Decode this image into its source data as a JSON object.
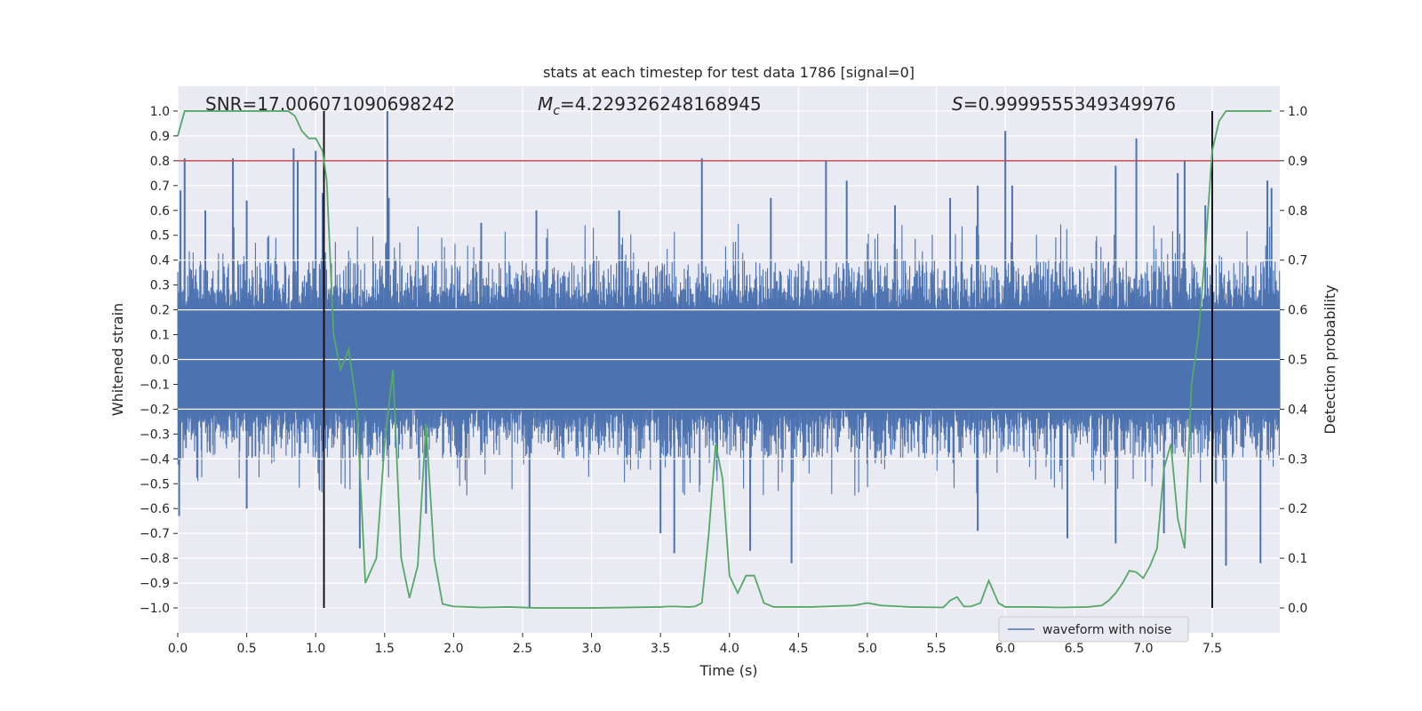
{
  "chart_data": {
    "type": "line",
    "title": "stats at each timestep for test data 1786 [signal=0]",
    "xlabel": "Time (s)",
    "ylabel_left": "Whitened strain",
    "ylabel_right": "Detection probability",
    "xlim": [
      0.0,
      7.99
    ],
    "ylim_left": [
      -1.1,
      1.1
    ],
    "ylim_right": [
      -0.05,
      1.05
    ],
    "x_ticks": [
      0.0,
      0.5,
      1.0,
      1.5,
      2.0,
      2.5,
      3.0,
      3.5,
      4.0,
      4.5,
      5.0,
      5.5,
      6.0,
      6.5,
      7.0,
      7.5
    ],
    "x_tick_labels": [
      "0.0",
      "0.5",
      "1.0",
      "1.5",
      "2.0",
      "2.5",
      "3.0",
      "3.5",
      "4.0",
      "4.5",
      "5.0",
      "5.5",
      "6.0",
      "6.5",
      "7.0",
      "7.5"
    ],
    "y_left_ticks": [
      1.0,
      0.9,
      0.8,
      0.7,
      0.6,
      0.5,
      0.4,
      0.3,
      0.2,
      0.1,
      0.0,
      -0.1,
      -0.2,
      -0.3,
      -0.4,
      -0.5,
      -0.6,
      -0.7,
      -0.8,
      -0.9,
      -1.0
    ],
    "y_left_tick_labels": [
      "1.0",
      "0.9",
      "0.8",
      "0.7",
      "0.6",
      "0.5",
      "0.4",
      "0.3",
      "0.2",
      "0.1",
      "0.0",
      "−0.1",
      "−0.2",
      "−0.3",
      "−0.4",
      "−0.5",
      "−0.6",
      "−0.7",
      "−0.8",
      "−0.9",
      "−1.0"
    ],
    "y_right_ticks": [
      1.0,
      0.9,
      0.8,
      0.7,
      0.6,
      0.5,
      0.4,
      0.3,
      0.2,
      0.1,
      0.0
    ],
    "y_right_tick_labels": [
      "1.0",
      "0.9",
      "0.8",
      "0.7",
      "0.6",
      "0.5",
      "0.4",
      "0.3",
      "0.2",
      "0.1",
      "0.0"
    ],
    "grid": true,
    "annotations": {
      "snr": "SNR=17.006071090698242",
      "mc_symbol": "M",
      "mc_sub": "c",
      "mc_value": "=4.229326248168945",
      "s_symbol": "S",
      "s_value": "=0.9999555349349976"
    },
    "threshold": {
      "y_left": 0.8,
      "color": "#c44e52"
    },
    "vertical_markers": [
      1.06,
      7.5
    ],
    "legend": {
      "label": "waveform with noise",
      "placement": "lower-right"
    },
    "waveform": {
      "name": "waveform with noise",
      "color": "#4c72b0",
      "duration": 7.99,
      "core_amplitude": 0.2,
      "typical_peak": 0.4,
      "spikes": [
        {
          "t": 0.02,
          "v": 0.68
        },
        {
          "t": 0.05,
          "v": 0.81
        },
        {
          "t": 0.01,
          "v": -0.63
        },
        {
          "t": 0.2,
          "v": 0.6
        },
        {
          "t": 0.4,
          "v": 0.81
        },
        {
          "t": 0.5,
          "v": 0.64
        },
        {
          "t": 0.5,
          "v": -0.6
        },
        {
          "t": 0.84,
          "v": 0.85
        },
        {
          "t": 0.87,
          "v": 0.8
        },
        {
          "t": 1.0,
          "v": 0.84
        },
        {
          "t": 1.05,
          "v": 0.67
        },
        {
          "t": 1.32,
          "v": -0.76
        },
        {
          "t": 1.52,
          "v": 1.0
        },
        {
          "t": 1.53,
          "v": 0.65
        },
        {
          "t": 1.8,
          "v": -0.62
        },
        {
          "t": 2.2,
          "v": 0.55
        },
        {
          "t": 2.55,
          "v": -1.0
        },
        {
          "t": 2.6,
          "v": 0.6
        },
        {
          "t": 3.2,
          "v": 0.6
        },
        {
          "t": 3.5,
          "v": -0.7
        },
        {
          "t": 3.6,
          "v": -0.78
        },
        {
          "t": 3.8,
          "v": 0.81
        },
        {
          "t": 4.15,
          "v": -0.77
        },
        {
          "t": 4.3,
          "v": 0.65
        },
        {
          "t": 4.45,
          "v": -0.82
        },
        {
          "t": 4.7,
          "v": 0.8
        },
        {
          "t": 4.85,
          "v": 0.72
        },
        {
          "t": 5.2,
          "v": 0.62
        },
        {
          "t": 5.6,
          "v": 0.65
        },
        {
          "t": 5.8,
          "v": 0.7
        },
        {
          "t": 5.8,
          "v": -0.69
        },
        {
          "t": 6.0,
          "v": 0.92
        },
        {
          "t": 6.05,
          "v": 0.7
        },
        {
          "t": 6.45,
          "v": -0.72
        },
        {
          "t": 6.8,
          "v": 0.78
        },
        {
          "t": 6.95,
          "v": 0.89
        },
        {
          "t": 6.8,
          "v": -0.74
        },
        {
          "t": 7.15,
          "v": -0.7
        },
        {
          "t": 7.25,
          "v": 0.75
        },
        {
          "t": 7.3,
          "v": 0.8
        },
        {
          "t": 7.45,
          "v": 0.62
        },
        {
          "t": 7.6,
          "v": -0.83
        },
        {
          "t": 7.85,
          "v": -0.82
        },
        {
          "t": 7.9,
          "v": 0.72
        },
        {
          "t": 7.93,
          "v": 0.69
        }
      ]
    },
    "detection_probability": {
      "name": "detection probability",
      "color": "#55a868",
      "x": [
        0.0,
        0.05,
        0.1,
        0.2,
        0.3,
        0.4,
        0.5,
        0.6,
        0.7,
        0.8,
        0.85,
        0.9,
        0.95,
        1.0,
        1.05,
        1.08,
        1.13,
        1.18,
        1.24,
        1.3,
        1.36,
        1.44,
        1.5,
        1.56,
        1.62,
        1.68,
        1.74,
        1.8,
        1.86,
        1.92,
        2.0,
        2.1,
        2.2,
        2.4,
        2.6,
        3.0,
        3.5,
        3.56,
        3.6,
        3.7,
        3.75,
        3.8,
        3.85,
        3.9,
        3.95,
        4.0,
        4.06,
        4.12,
        4.18,
        4.25,
        4.32,
        4.4,
        4.6,
        4.9,
        5.0,
        5.1,
        5.3,
        5.55,
        5.6,
        5.65,
        5.7,
        5.75,
        5.82,
        5.88,
        5.95,
        6.0,
        6.05,
        6.2,
        6.4,
        6.6,
        6.7,
        6.75,
        6.8,
        6.85,
        6.9,
        6.95,
        7.0,
        7.05,
        7.1,
        7.15,
        7.2,
        7.25,
        7.3,
        7.35,
        7.4,
        7.45,
        7.5,
        7.55,
        7.6,
        7.7,
        7.93
      ],
      "values": [
        0.95,
        1.0,
        1.0,
        1.0,
        1.0,
        1.0,
        1.0,
        1.0,
        1.0,
        1.0,
        0.99,
        0.96,
        0.945,
        0.945,
        0.92,
        0.86,
        0.55,
        0.48,
        0.52,
        0.4,
        0.05,
        0.1,
        0.33,
        0.48,
        0.1,
        0.02,
        0.085,
        0.37,
        0.1,
        0.008,
        0.003,
        0.002,
        0.001,
        0.002,
        0.0,
        0.0,
        0.002,
        0.003,
        0.003,
        0.002,
        0.003,
        0.01,
        0.15,
        0.33,
        0.26,
        0.065,
        0.03,
        0.065,
        0.065,
        0.01,
        0.002,
        0.002,
        0.002,
        0.005,
        0.01,
        0.005,
        0.002,
        0.001,
        0.015,
        0.022,
        0.003,
        0.003,
        0.01,
        0.055,
        0.01,
        0.002,
        0.002,
        0.002,
        0.001,
        0.002,
        0.005,
        0.015,
        0.03,
        0.05,
        0.075,
        0.072,
        0.06,
        0.085,
        0.12,
        0.28,
        0.33,
        0.18,
        0.12,
        0.45,
        0.55,
        0.72,
        0.92,
        0.98,
        1.0,
        1.0,
        1.0
      ]
    }
  }
}
